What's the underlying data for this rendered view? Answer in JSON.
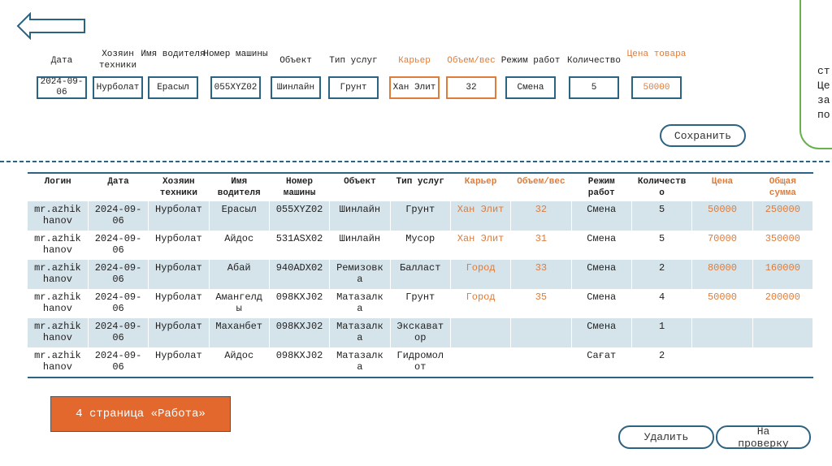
{
  "form": {
    "fields": [
      {
        "label": "Дата",
        "value": "2024-09-06"
      },
      {
        "label": "Хозяин техники",
        "value": "Нурболат"
      },
      {
        "label": "Имя водителя",
        "value": "Ерасыл"
      },
      {
        "label": "Номер машины",
        "value": "055XYZ02"
      },
      {
        "label": "Объект",
        "value": "Шинлайн"
      },
      {
        "label": "Тип услуг",
        "value": "Грунт"
      },
      {
        "label": "Карьер",
        "value": "Хан Элит"
      },
      {
        "label": "Объем/вес",
        "value": "32"
      },
      {
        "label": "Режим работ",
        "value": "Смена"
      },
      {
        "label": "Количество",
        "value": "5"
      },
      {
        "label": "Цена товара",
        "value": "50000"
      }
    ],
    "save_button": "Сохранить"
  },
  "table": {
    "columns": [
      "Логин",
      "Дата",
      "Хозяин техники",
      "Имя водителя",
      "Номер машины",
      "Объект",
      "Тип услуг",
      "Карьер",
      "Объем/вес",
      "Режим работ",
      "Количество",
      "Цена",
      "Общая сумма"
    ],
    "rows": [
      [
        "mr.azhikhanov",
        "2024-09-06",
        "Нурболат",
        "Ерасыл",
        "055XYZ02",
        "Шинлайн",
        "Грунт",
        "Хан Элит",
        32,
        "Смена",
        5,
        50000,
        250000
      ],
      [
        "mr.azhikhanov",
        "2024-09-06",
        "Нурболат",
        "Айдос",
        "531ASX02",
        "Шинлайн",
        "Мусор",
        "Хан Элит",
        31,
        "Смена",
        5,
        70000,
        350000
      ],
      [
        "mr.azhikhanov",
        "2024-09-06",
        "Нурболат",
        "Абай",
        "940ADX02",
        "Ремизовка",
        "Балласт",
        "Город",
        33,
        "Смена",
        2,
        80000,
        160000
      ],
      [
        "mr.azhikhanov",
        "2024-09-06",
        "Нурболат",
        "Амангелды",
        "098KXJ02",
        "Матазалка",
        "Грунт",
        "Город",
        35,
        "Смена",
        4,
        50000,
        200000
      ],
      [
        "mr.azhikhanov",
        "2024-09-06",
        "Нурболат",
        "Маханбет",
        "098KXJ02",
        "Матазалка",
        "Экскаватор",
        null,
        null,
        "Смена",
        1,
        null,
        null
      ],
      [
        "mr.azhikhanov",
        "2024-09-06",
        "Нурболат",
        "Айдос",
        "098KXJ02",
        "Матазалка",
        "Гидромолот",
        null,
        null,
        "Сағат",
        2,
        null,
        null
      ]
    ]
  },
  "page_label": "4 страница «Работа»",
  "buttons": {
    "delete": "Удалить",
    "review": "На проверку"
  },
  "side_panel": {
    "lines": [
      "ст",
      "Це",
      "за",
      "по"
    ]
  }
}
